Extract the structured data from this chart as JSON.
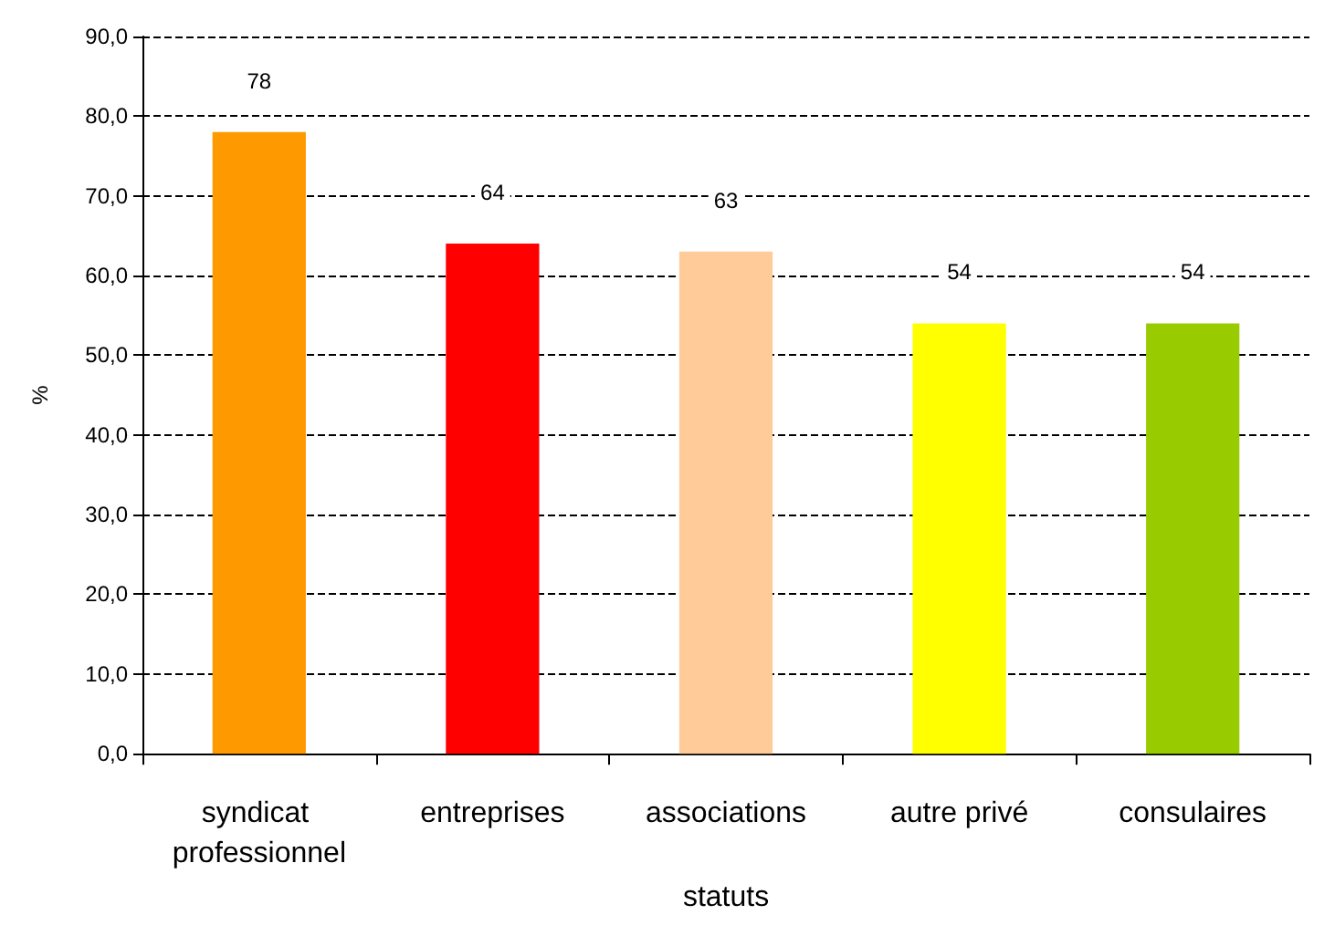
{
  "chart_data": {
    "type": "bar",
    "xlabel": "statuts",
    "ylabel": "%",
    "categories": [
      "syndicat professionnel",
      "entreprises",
      "associations",
      "autre privé",
      "consulaires"
    ],
    "values": [
      78,
      64,
      63,
      54,
      54
    ],
    "colors": [
      "#ff9900",
      "#ff0000",
      "#ffcc99",
      "#ffff00",
      "#99cc00"
    ],
    "data_labels": true,
    "ylim": [
      0,
      90
    ],
    "yticks": [
      {
        "value": 0,
        "label": "0,0"
      },
      {
        "value": 10,
        "label": "10,0"
      },
      {
        "value": 20,
        "label": "20,0"
      },
      {
        "value": 30,
        "label": "30,0"
      },
      {
        "value": 40,
        "label": "40,0"
      },
      {
        "value": 50,
        "label": "50,0"
      },
      {
        "value": 60,
        "label": "60,0"
      },
      {
        "value": 70,
        "label": "70,0"
      },
      {
        "value": 80,
        "label": "80,0"
      },
      {
        "value": 90,
        "label": "90,0"
      }
    ],
    "grid": "y"
  }
}
